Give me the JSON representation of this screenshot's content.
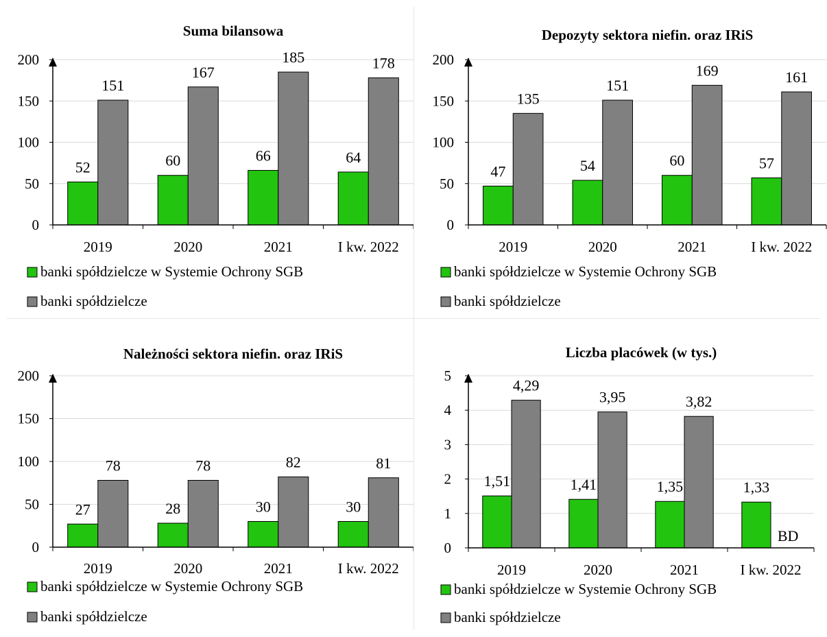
{
  "chart_data": [
    {
      "type": "bar",
      "title": "Suma bilansowa",
      "categories": [
        "2019",
        "2020",
        "2021",
        "I kw. 2022"
      ],
      "ylim": [
        0,
        200
      ],
      "yticks": [
        "0",
        "50",
        "100",
        "150",
        "200"
      ],
      "series": [
        {
          "name": "banki spółdzielcze w Systemie Ochrony SGB",
          "color": "#22c40f",
          "values": [
            52,
            60,
            66,
            64
          ],
          "labels": [
            "52",
            "60",
            "66",
            "64"
          ]
        },
        {
          "name": "banki spółdzielcze",
          "color": "#808080",
          "values": [
            151,
            167,
            185,
            178
          ],
          "labels": [
            "151",
            "167",
            "185",
            "178"
          ]
        }
      ],
      "grid": true,
      "legend": "bottom-left"
    },
    {
      "type": "bar",
      "title": "Depozyty sektora niefin. oraz IRiS",
      "categories": [
        "2019",
        "2020",
        "2021",
        "I kw. 2022"
      ],
      "ylim": [
        0,
        200
      ],
      "yticks": [
        "0",
        "50",
        "100",
        "150",
        "200"
      ],
      "series": [
        {
          "name": "banki spółdzielcze w Systemie Ochrony SGB",
          "color": "#22c40f",
          "values": [
            47,
            54,
            60,
            57
          ],
          "labels": [
            "47",
            "54",
            "60",
            "57"
          ]
        },
        {
          "name": "banki spółdzielcze",
          "color": "#808080",
          "values": [
            135,
            151,
            169,
            161
          ],
          "labels": [
            "135",
            "151",
            "169",
            "161"
          ]
        }
      ],
      "grid": true,
      "legend": "bottom-left"
    },
    {
      "type": "bar",
      "title": "Należności sektora niefin. oraz IRiS",
      "categories": [
        "2019",
        "2020",
        "2021",
        "I kw. 2022"
      ],
      "ylim": [
        0,
        200
      ],
      "yticks": [
        "0",
        "50",
        "100",
        "150",
        "200"
      ],
      "series": [
        {
          "name": "banki spółdzielcze w Systemie Ochrony SGB",
          "color": "#22c40f",
          "values": [
            27,
            28,
            30,
            30
          ],
          "labels": [
            "27",
            "28",
            "30",
            "30"
          ]
        },
        {
          "name": "banki spółdzielcze",
          "color": "#808080",
          "values": [
            78,
            78,
            82,
            81
          ],
          "labels": [
            "78",
            "78",
            "82",
            "81"
          ]
        }
      ],
      "grid": true,
      "legend": "bottom-left"
    },
    {
      "type": "bar",
      "title": "Liczba placówek (w tys.)",
      "categories": [
        "2019",
        "2020",
        "2021",
        "I kw. 2022"
      ],
      "ylim": [
        0,
        5
      ],
      "yticks": [
        "0",
        "1",
        "2",
        "3",
        "4",
        "5"
      ],
      "series": [
        {
          "name": "banki spółdzielcze w Systemie Ochrony SGB",
          "color": "#22c40f",
          "values": [
            1.51,
            1.41,
            1.35,
            1.33
          ],
          "labels": [
            "1,51",
            "1,41",
            "1,35",
            "1,33"
          ]
        },
        {
          "name": "banki spółdzielcze",
          "color": "#808080",
          "values": [
            4.29,
            3.95,
            3.82,
            null
          ],
          "labels": [
            "4,29",
            "3,95",
            "3,82",
            "BD"
          ]
        }
      ],
      "grid": true,
      "legend": "bottom-left"
    }
  ]
}
